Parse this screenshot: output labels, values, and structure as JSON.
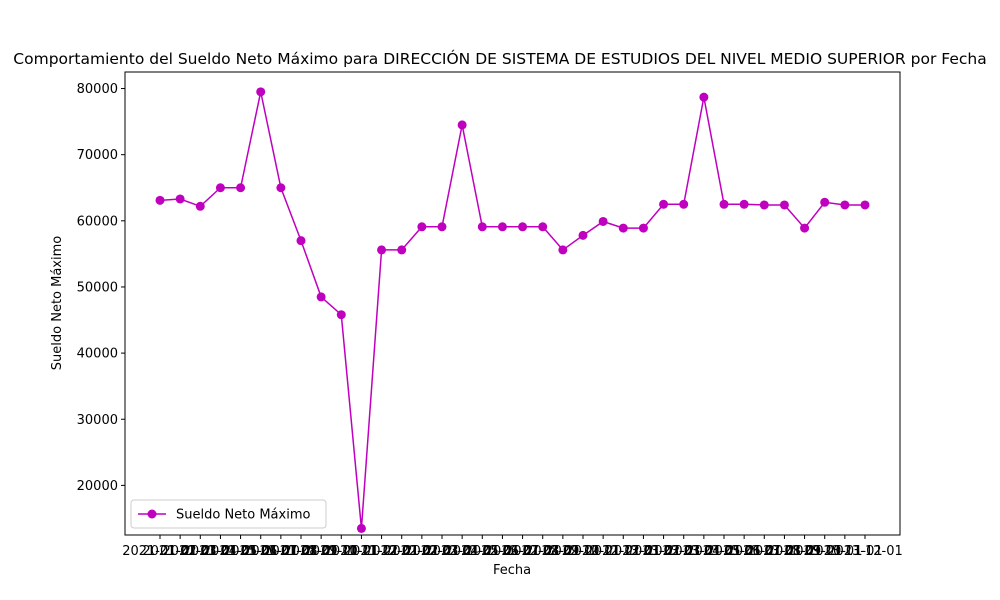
{
  "chart_data": {
    "type": "line",
    "title": "Comportamiento del Sueldo Neto Máximo para DIRECCIÓN DE SISTEMA DE ESTUDIOS DEL NIVEL MEDIO SUPERIOR por Fecha",
    "xlabel": "Fecha",
    "ylabel": "Sueldo Neto Máximo",
    "ylim": [
      12500,
      82500
    ],
    "yticks": [
      20000,
      30000,
      40000,
      50000,
      60000,
      70000,
      80000
    ],
    "grid": false,
    "legend_position": "lower-left",
    "x": [
      "2021-01-01",
      "2021-02-01",
      "2021-03-01",
      "2021-04-01",
      "2021-05-01",
      "2021-06-01",
      "2021-07-01",
      "2021-08-01",
      "2021-09-01",
      "2021-10-01",
      "2021-11-01",
      "2021-12-01",
      "2022-01-01",
      "2022-02-01",
      "2022-03-01",
      "2022-04-01",
      "2022-05-01",
      "2022-06-01",
      "2022-07-01",
      "2022-08-01",
      "2022-09-01",
      "2022-10-01",
      "2022-11-01",
      "2022-12-01",
      "2023-01-01",
      "2023-02-01",
      "2023-03-01",
      "2023-04-01",
      "2023-05-01",
      "2023-06-01",
      "2023-07-01",
      "2023-08-01",
      "2023-09-01",
      "2023-10-01",
      "2023-11-01",
      "2023-12-01"
    ],
    "series": [
      {
        "name": "Sueldo Neto Máximo",
        "color": "#bf00bf",
        "values": [
          63100,
          63300,
          62200,
          65000,
          65000,
          79500,
          65000,
          57000,
          48500,
          45800,
          13500,
          55600,
          55600,
          59100,
          59100,
          74500,
          59100,
          59100,
          59100,
          59100,
          55600,
          57800,
          59900,
          58900,
          58900,
          62500,
          62500,
          78700,
          62500,
          62500,
          62400,
          62400,
          58900,
          62800,
          62400,
          62400
        ]
      }
    ]
  }
}
